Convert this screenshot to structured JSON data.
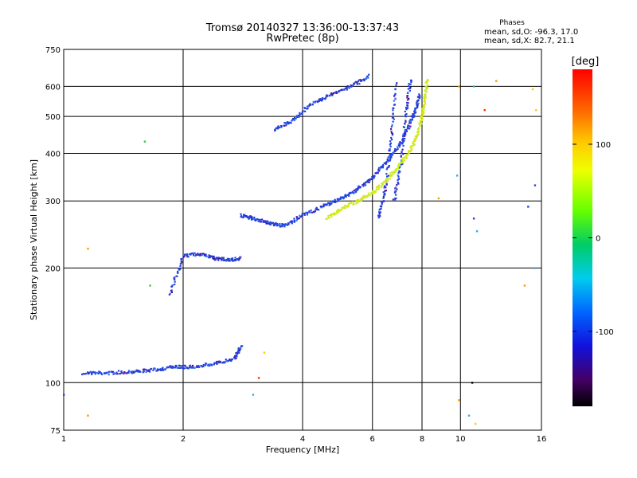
{
  "chart_data": {
    "type": "scatter",
    "title": "Tromsø 20140327 13:36:00-13:37:43",
    "subtitle": "RwPretec (8p)",
    "xlabel": "Frequency [MHz]",
    "ylabel": "Stationary phase Virtual Height [km]",
    "x_scale": "log",
    "y_scale": "log",
    "xlim": [
      1,
      16
    ],
    "ylim": [
      75,
      750
    ],
    "x_ticks": [
      1,
      2,
      4,
      6,
      8,
      10,
      16
    ],
    "y_ticks": [
      75,
      100,
      200,
      300,
      400,
      500,
      600,
      750
    ],
    "grid": true,
    "legend": {
      "title": "Phases",
      "lines": [
        "mean, sd,O: -96.3, 17.0",
        "mean, sd,X: 82.7, 21.1"
      ]
    },
    "colorbar": {
      "label": "[deg]",
      "range": [
        -180,
        180
      ],
      "ticks": [
        100,
        0,
        -100
      ]
    },
    "series": [
      {
        "mode": "O",
        "color": "#2244dd",
        "traces": [
          [
            [
              1.12,
              106
            ],
            [
              1.3,
              106
            ],
            [
              1.5,
              107
            ],
            [
              1.7,
              108
            ],
            [
              1.9,
              110
            ],
            [
              2.1,
              110
            ],
            [
              2.4,
              112
            ],
            [
              2.7,
              116
            ],
            [
              2.8,
              125
            ]
          ],
          [
            [
              1.85,
              170
            ],
            [
              2.0,
              215
            ],
            [
              2.2,
              218
            ],
            [
              2.4,
              212
            ],
            [
              2.6,
              210
            ],
            [
              2.8,
              212
            ]
          ],
          [
            [
              2.8,
              275
            ],
            [
              3.0,
              270
            ],
            [
              3.3,
              262
            ],
            [
              3.6,
              258
            ],
            [
              4.0,
              275
            ],
            [
              4.5,
              290
            ],
            [
              5.0,
              305
            ],
            [
              5.5,
              322
            ],
            [
              6.0,
              345
            ],
            [
              6.5,
              380
            ],
            [
              7.0,
              420
            ],
            [
              7.4,
              470
            ],
            [
              7.7,
              520
            ],
            [
              7.9,
              570
            ]
          ],
          [
            [
              3.4,
              460
            ],
            [
              3.8,
              490
            ],
            [
              4.2,
              540
            ],
            [
              4.7,
              570
            ],
            [
              5.3,
              600
            ],
            [
              5.9,
              640
            ]
          ],
          [
            [
              6.2,
              270
            ],
            [
              6.5,
              330
            ],
            [
              6.7,
              450
            ],
            [
              6.9,
              620
            ]
          ],
          [
            [
              6.8,
              300
            ],
            [
              7.1,
              380
            ],
            [
              7.3,
              520
            ],
            [
              7.5,
              630
            ]
          ]
        ]
      },
      {
        "mode": "X",
        "color": "#ccee22",
        "traces": [
          [
            [
              4.6,
              270
            ],
            [
              5.0,
              285
            ],
            [
              5.5,
              300
            ],
            [
              6.0,
              315
            ],
            [
              6.5,
              340
            ],
            [
              7.0,
              370
            ],
            [
              7.5,
              410
            ],
            [
              7.8,
              450
            ],
            [
              8.0,
              500
            ],
            [
              8.15,
              560
            ],
            [
              8.25,
              630
            ]
          ]
        ]
      }
    ],
    "points": [
      {
        "x": 1.15,
        "y": 225,
        "color": "#ff9900"
      },
      {
        "x": 1.6,
        "y": 430,
        "color": "#33cc33"
      },
      {
        "x": 1.65,
        "y": 180,
        "color": "#33cc33"
      },
      {
        "x": 3.2,
        "y": 120,
        "color": "#ffcc00"
      },
      {
        "x": 3.1,
        "y": 103,
        "color": "#ff3300"
      },
      {
        "x": 3.0,
        "y": 93,
        "color": "#33aaee"
      },
      {
        "x": 9.9,
        "y": 600,
        "color": "#ff9900"
      },
      {
        "x": 10.8,
        "y": 600,
        "color": "#00cccc"
      },
      {
        "x": 12.3,
        "y": 620,
        "color": "#ff9900"
      },
      {
        "x": 11.5,
        "y": 520,
        "color": "#ff3300"
      },
      {
        "x": 15.2,
        "y": 590,
        "color": "#ffcc00"
      },
      {
        "x": 15.5,
        "y": 520,
        "color": "#ffcc00"
      },
      {
        "x": 14.8,
        "y": 290,
        "color": "#2244dd"
      },
      {
        "x": 15.3,
        "y": 200,
        "color": "#33aaee"
      },
      {
        "x": 15.4,
        "y": 330,
        "color": "#2244dd"
      },
      {
        "x": 10.5,
        "y": 82,
        "color": "#33aaee"
      },
      {
        "x": 10.9,
        "y": 78,
        "color": "#ffcc00"
      },
      {
        "x": 9.9,
        "y": 90,
        "color": "#ff9900"
      },
      {
        "x": 10.7,
        "y": 100,
        "color": "#000000"
      },
      {
        "x": 9.8,
        "y": 350,
        "color": "#33aaee"
      },
      {
        "x": 8.8,
        "y": 305,
        "color": "#ff9900"
      },
      {
        "x": 1.0,
        "y": 93,
        "color": "#2244dd"
      },
      {
        "x": 1.15,
        "y": 82,
        "color": "#ff9900"
      },
      {
        "x": 14.5,
        "y": 180,
        "color": "#ff9900"
      },
      {
        "x": 10.8,
        "y": 270,
        "color": "#2244dd"
      },
      {
        "x": 11.0,
        "y": 250,
        "color": "#33aaee"
      }
    ]
  }
}
